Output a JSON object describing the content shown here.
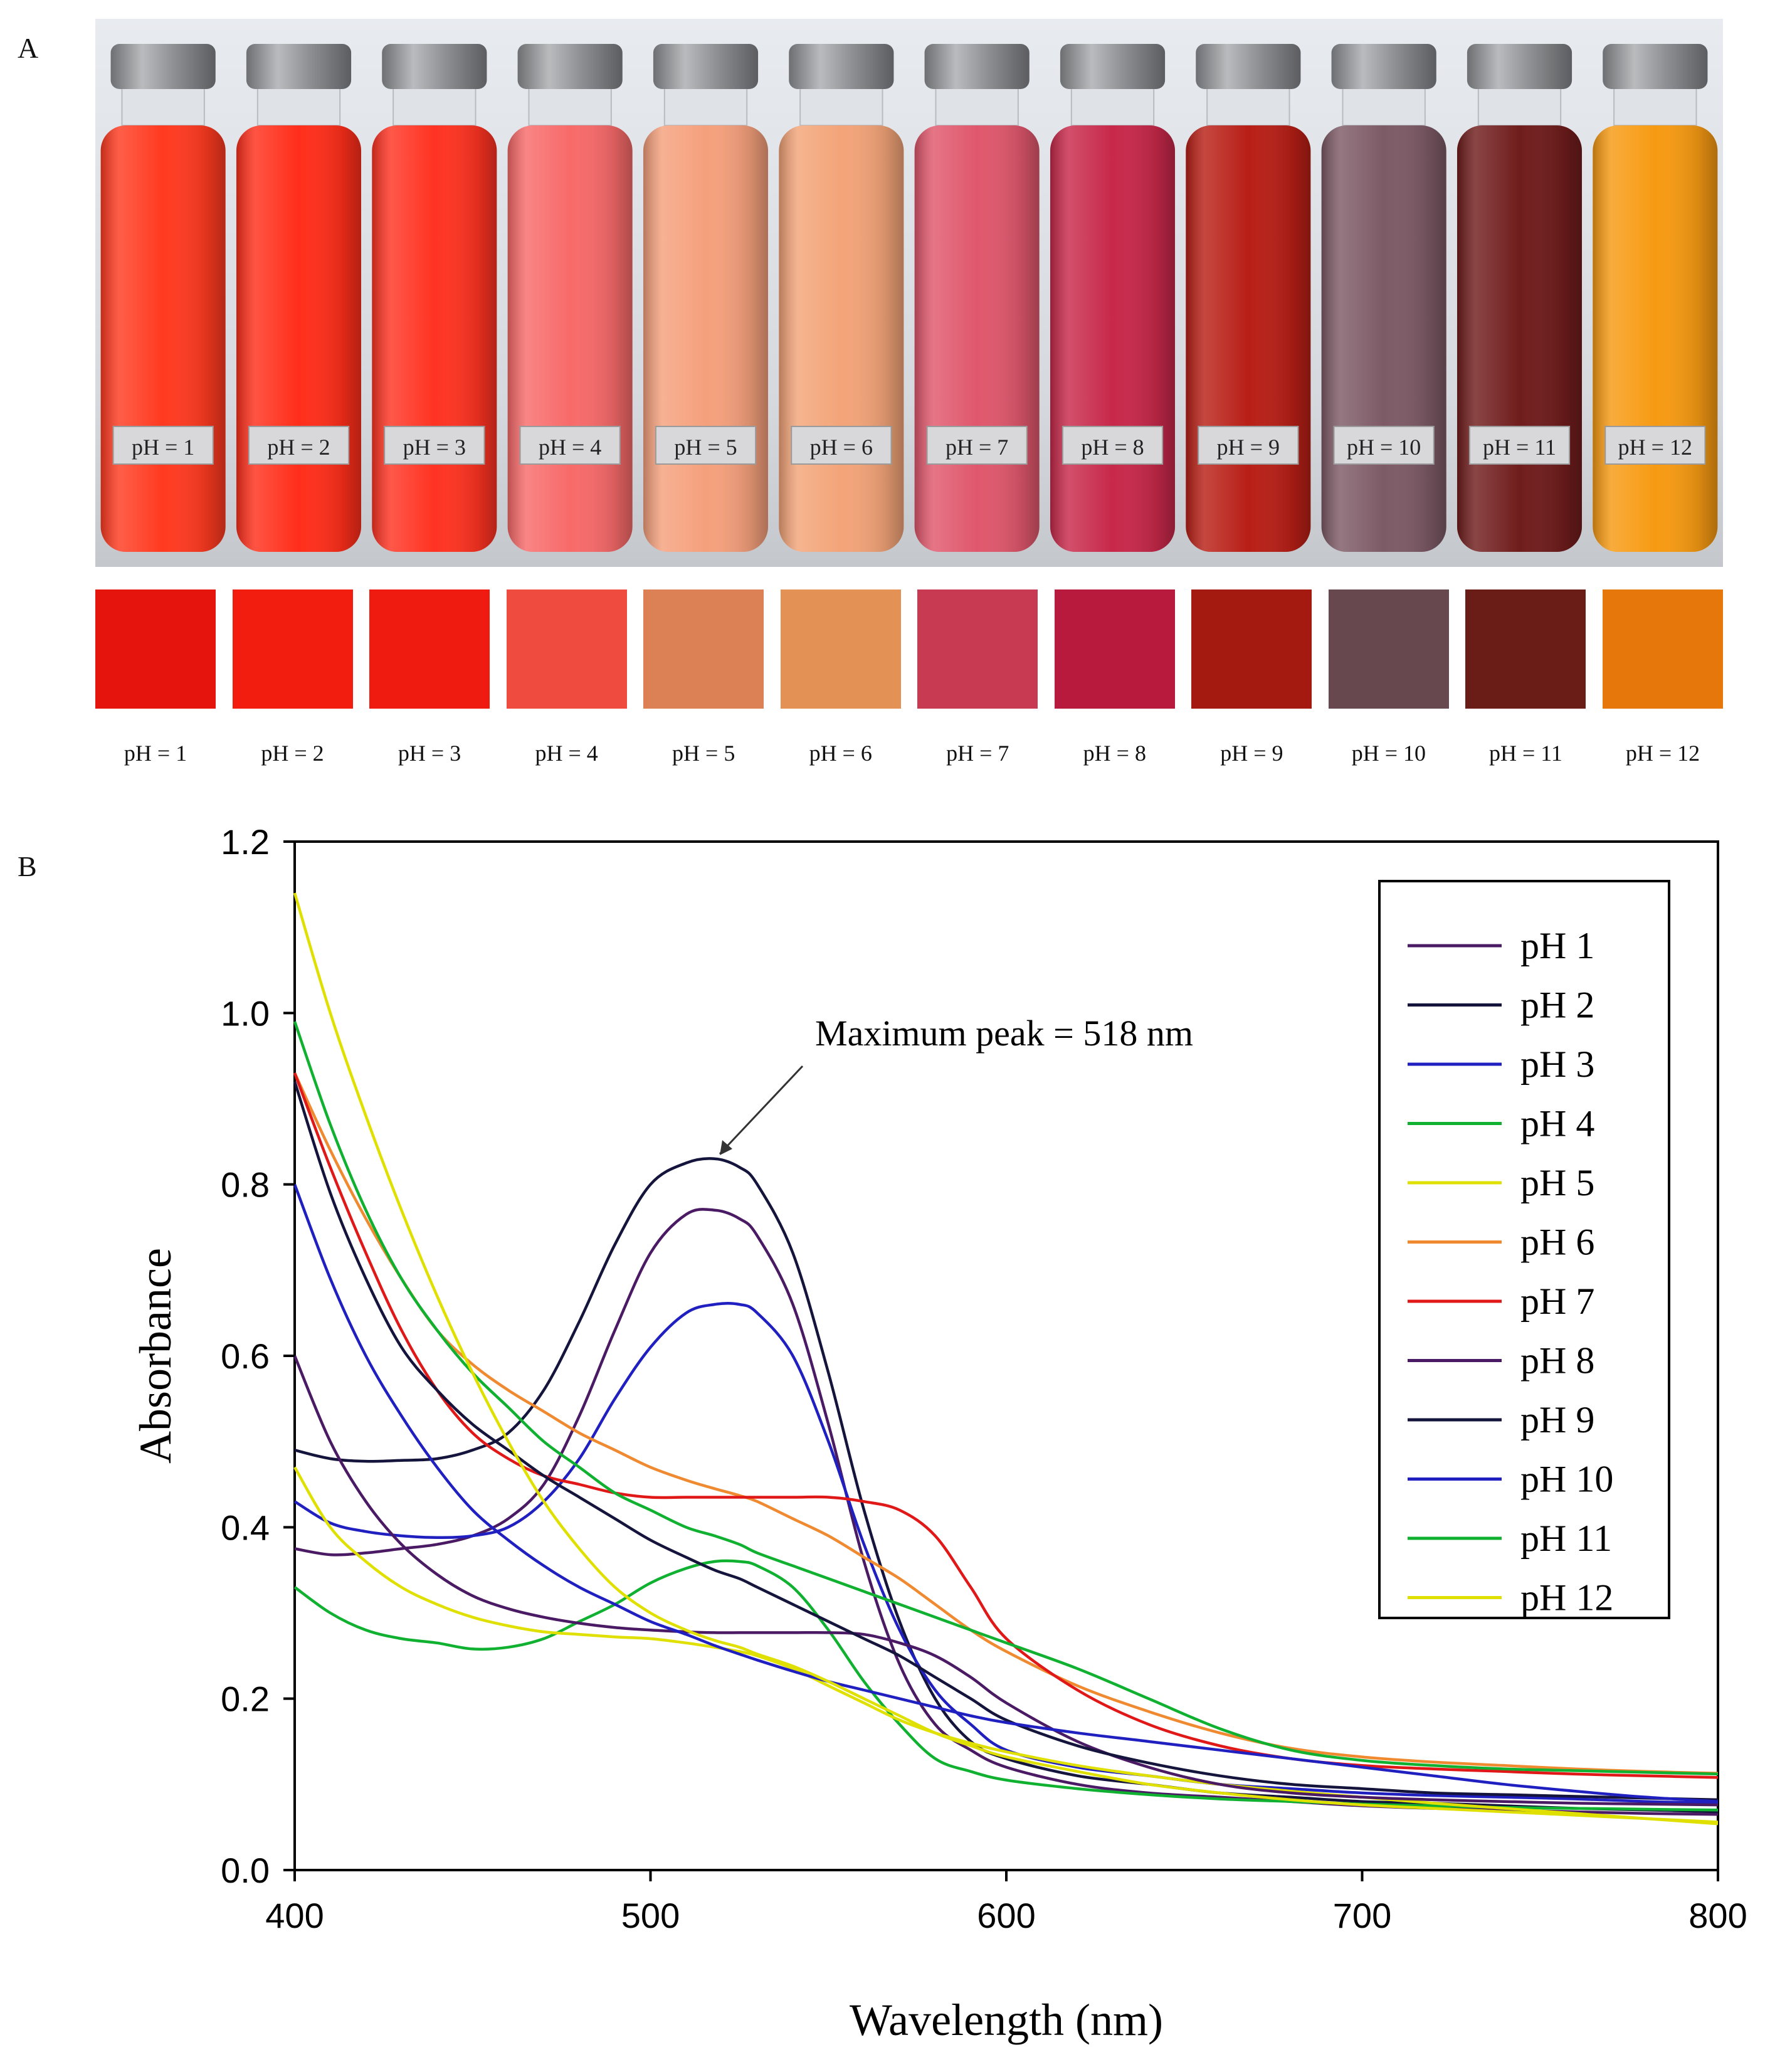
{
  "panels": {
    "a": "A",
    "b": "B"
  },
  "photo": {
    "description_labels": [
      "pH = 1",
      "pH = 2",
      "pH = 3",
      "pH = 4",
      "pH = 5",
      "pH = 6",
      "pH = 7",
      "pH = 8",
      "pH = 9",
      "pH = 10",
      "pH = 11",
      "pH = 12"
    ],
    "bottle_colors": [
      "#ff3a20",
      "#ff2e1a",
      "#ff3322",
      "#f86a6a",
      "#f5a07c",
      "#f3a478",
      "#e0576c",
      "#c8284a",
      "#b81f16",
      "#7d5a66",
      "#701c1c",
      "#f79a12"
    ]
  },
  "swatches": {
    "labels": [
      "pH = 1",
      "pH = 2",
      "pH = 3",
      "pH = 4",
      "pH = 5",
      "pH = 6",
      "pH = 7",
      "pH = 8",
      "pH = 9",
      "pH = 10",
      "pH = 11",
      "pH = 12"
    ],
    "colors": [
      "#e5140c",
      "#f21d0f",
      "#ef1b10",
      "#ef4b3f",
      "#dc8156",
      "#e39155",
      "#c73a52",
      "#b81a3d",
      "#a41910",
      "#67484f",
      "#6a1c17",
      "#e6770b"
    ]
  },
  "chart_data": {
    "type": "line",
    "title": "",
    "xlabel": "Wavelength (nm)",
    "ylabel": "Absorbance",
    "xlim": [
      400,
      800
    ],
    "ylim": [
      0.0,
      1.2
    ],
    "xticks": [
      "400",
      "500",
      "600",
      "700",
      "800"
    ],
    "yticks": [
      "0.0",
      "0.2",
      "0.4",
      "0.6",
      "0.8",
      "1.0",
      "1.2"
    ],
    "legend_position": "top-right",
    "annotation": {
      "text": "Maximum  peak = 518 nm",
      "x": 518,
      "y": 0.83
    },
    "x": [
      400,
      410,
      420,
      430,
      440,
      450,
      460,
      470,
      480,
      490,
      500,
      510,
      518,
      525,
      530,
      540,
      550,
      560,
      570,
      580,
      590,
      600,
      620,
      640,
      660,
      680,
      700,
      720,
      740,
      760,
      780,
      800
    ],
    "series": [
      {
        "name": "pH 1",
        "color": "#4b1a64",
        "values": [
          0.375,
          0.368,
          0.37,
          0.375,
          0.38,
          0.39,
          0.41,
          0.45,
          0.53,
          0.63,
          0.72,
          0.765,
          0.77,
          0.76,
          0.74,
          0.66,
          0.52,
          0.36,
          0.24,
          0.17,
          0.14,
          0.12,
          0.1,
          0.09,
          0.085,
          0.08,
          0.075,
          0.072,
          0.07,
          0.068,
          0.066,
          0.065
        ]
      },
      {
        "name": "pH 2",
        "color": "#14143c",
        "values": [
          0.49,
          0.48,
          0.477,
          0.478,
          0.48,
          0.49,
          0.51,
          0.56,
          0.64,
          0.73,
          0.8,
          0.825,
          0.83,
          0.82,
          0.8,
          0.72,
          0.58,
          0.42,
          0.29,
          0.2,
          0.15,
          0.13,
          0.11,
          0.1,
          0.09,
          0.085,
          0.08,
          0.078,
          0.075,
          0.072,
          0.07,
          0.068
        ]
      },
      {
        "name": "pH 3",
        "color": "#2020c0",
        "values": [
          0.43,
          0.405,
          0.395,
          0.39,
          0.388,
          0.39,
          0.4,
          0.43,
          0.48,
          0.55,
          0.61,
          0.65,
          0.66,
          0.66,
          0.65,
          0.6,
          0.5,
          0.38,
          0.28,
          0.21,
          0.17,
          0.14,
          0.12,
          0.11,
          0.1,
          0.095,
          0.09,
          0.087,
          0.085,
          0.083,
          0.08,
          0.078
        ]
      },
      {
        "name": "pH 4",
        "color": "#10b030",
        "values": [
          0.33,
          0.3,
          0.28,
          0.27,
          0.265,
          0.258,
          0.26,
          0.27,
          0.29,
          0.31,
          0.335,
          0.352,
          0.36,
          0.36,
          0.355,
          0.33,
          0.28,
          0.22,
          0.17,
          0.13,
          0.115,
          0.105,
          0.095,
          0.088,
          0.083,
          0.08,
          0.077,
          0.075,
          0.073,
          0.072,
          0.071,
          0.07
        ]
      },
      {
        "name": "pH 5",
        "color": "#e0e000",
        "values": [
          0.47,
          0.4,
          0.36,
          0.33,
          0.31,
          0.295,
          0.285,
          0.278,
          0.275,
          0.272,
          0.27,
          0.265,
          0.26,
          0.255,
          0.25,
          0.235,
          0.215,
          0.195,
          0.175,
          0.16,
          0.148,
          0.138,
          0.122,
          0.11,
          0.1,
          0.092,
          0.085,
          0.078,
          0.072,
          0.066,
          0.06,
          0.054
        ]
      },
      {
        "name": "pH 6",
        "color": "#f08a30",
        "values": [
          0.93,
          0.84,
          0.76,
          0.69,
          0.63,
          0.59,
          0.56,
          0.535,
          0.51,
          0.49,
          0.47,
          0.455,
          0.445,
          0.437,
          0.43,
          0.41,
          0.39,
          0.365,
          0.34,
          0.31,
          0.28,
          0.255,
          0.215,
          0.185,
          0.16,
          0.142,
          0.132,
          0.126,
          0.122,
          0.118,
          0.115,
          0.113
        ]
      },
      {
        "name": "pH 7",
        "color": "#e01818",
        "values": [
          0.93,
          0.82,
          0.72,
          0.63,
          0.56,
          0.51,
          0.48,
          0.46,
          0.45,
          0.44,
          0.435,
          0.435,
          0.435,
          0.435,
          0.435,
          0.435,
          0.435,
          0.43,
          0.42,
          0.39,
          0.33,
          0.27,
          0.21,
          0.17,
          0.145,
          0.13,
          0.122,
          0.118,
          0.115,
          0.112,
          0.11,
          0.108
        ]
      },
      {
        "name": "pH 8",
        "color": "#4b1a64",
        "values": [
          0.6,
          0.5,
          0.43,
          0.38,
          0.345,
          0.32,
          0.305,
          0.295,
          0.288,
          0.283,
          0.28,
          0.278,
          0.277,
          0.277,
          0.277,
          0.277,
          0.277,
          0.275,
          0.265,
          0.25,
          0.225,
          0.195,
          0.15,
          0.12,
          0.1,
          0.09,
          0.085,
          0.082,
          0.08,
          0.078,
          0.077,
          0.076
        ]
      },
      {
        "name": "pH 9",
        "color": "#14143c",
        "values": [
          0.92,
          0.79,
          0.69,
          0.61,
          0.56,
          0.52,
          0.49,
          0.46,
          0.435,
          0.41,
          0.385,
          0.365,
          0.35,
          0.34,
          0.33,
          0.31,
          0.29,
          0.27,
          0.25,
          0.225,
          0.2,
          0.175,
          0.145,
          0.125,
          0.11,
          0.1,
          0.095,
          0.09,
          0.088,
          0.086,
          0.084,
          0.082
        ]
      },
      {
        "name": "pH 10",
        "color": "#2020c0",
        "values": [
          0.8,
          0.69,
          0.6,
          0.53,
          0.47,
          0.42,
          0.385,
          0.355,
          0.33,
          0.31,
          0.29,
          0.275,
          0.262,
          0.252,
          0.245,
          0.232,
          0.22,
          0.21,
          0.2,
          0.19,
          0.18,
          0.172,
          0.16,
          0.15,
          0.14,
          0.13,
          0.12,
          0.11,
          0.1,
          0.092,
          0.085,
          0.08
        ]
      },
      {
        "name": "pH 11",
        "color": "#10b030",
        "values": [
          0.99,
          0.87,
          0.77,
          0.69,
          0.63,
          0.58,
          0.54,
          0.5,
          0.47,
          0.44,
          0.42,
          0.4,
          0.39,
          0.38,
          0.37,
          0.355,
          0.34,
          0.325,
          0.31,
          0.295,
          0.28,
          0.265,
          0.235,
          0.2,
          0.165,
          0.14,
          0.128,
          0.122,
          0.118,
          0.116,
          0.114,
          0.112
        ]
      },
      {
        "name": "pH 12",
        "color": "#e0e000",
        "values": [
          1.14,
          1.0,
          0.88,
          0.77,
          0.67,
          0.58,
          0.5,
          0.43,
          0.375,
          0.33,
          0.3,
          0.28,
          0.268,
          0.26,
          0.252,
          0.238,
          0.22,
          0.2,
          0.18,
          0.16,
          0.145,
          0.132,
          0.115,
          0.1,
          0.09,
          0.082,
          0.076,
          0.072,
          0.068,
          0.064,
          0.06,
          0.056
        ]
      }
    ]
  }
}
